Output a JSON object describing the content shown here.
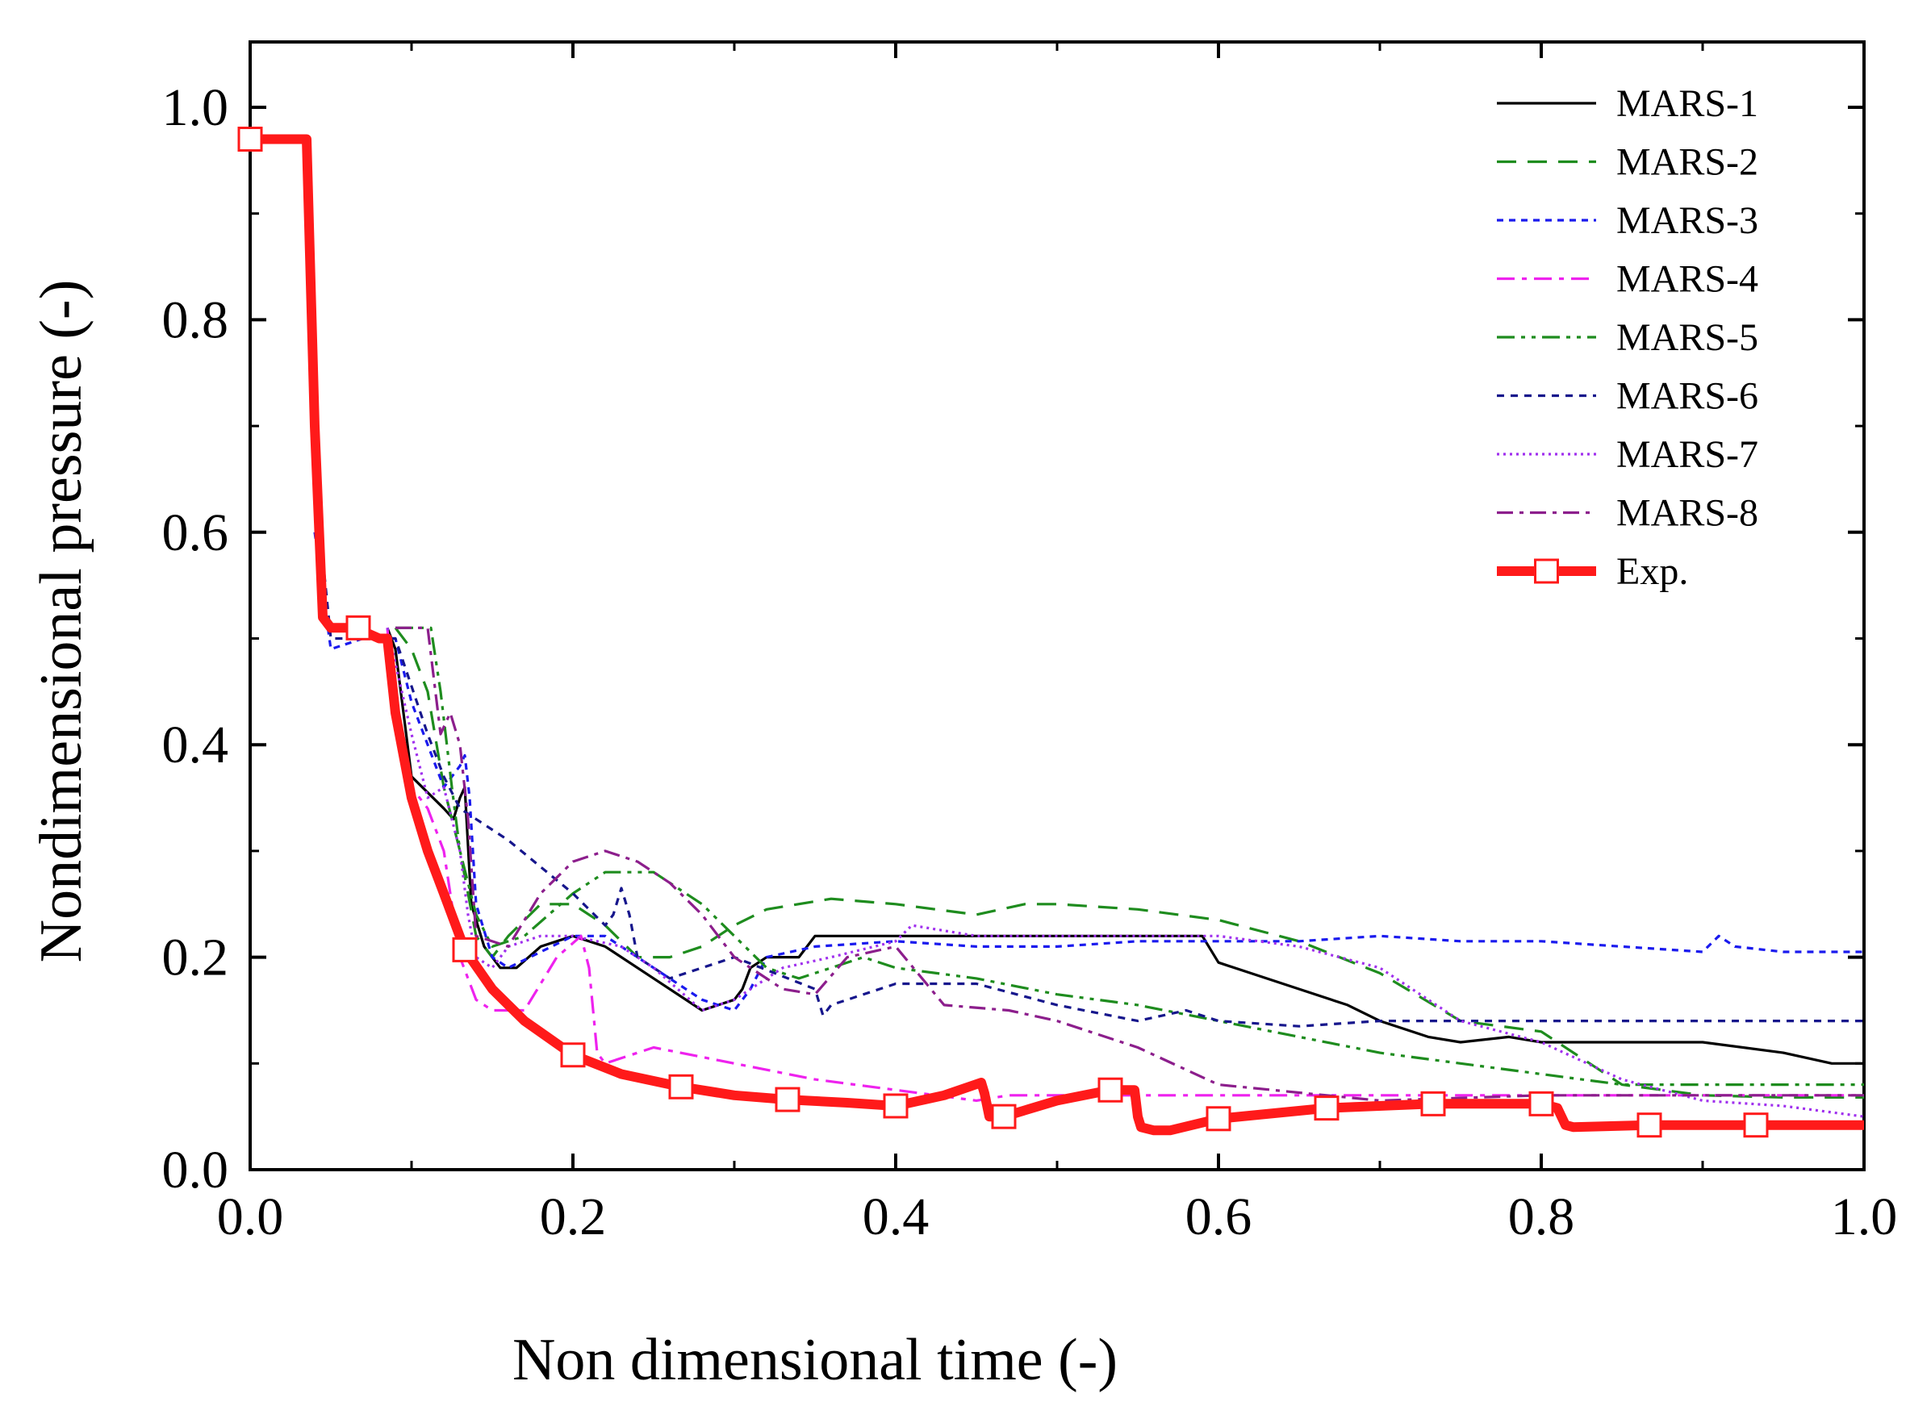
{
  "chart_data": {
    "type": "line",
    "title": "",
    "xlabel": "Non dimensional time (-)",
    "ylabel": "Nondimensional pressure (-)",
    "xlim": [
      0,
      1.0
    ],
    "ylim": [
      0,
      1.06
    ],
    "xticks": [
      "0.0",
      "0.2",
      "0.4",
      "0.6",
      "0.8",
      "1.0"
    ],
    "yticks": [
      "0.0",
      "0.2",
      "0.4",
      "0.6",
      "0.8",
      "1.0"
    ],
    "grid": false,
    "legend_position": "top-right",
    "series": [
      {
        "name": "MARS-1",
        "color": "#000000",
        "dash": "",
        "marker": "none",
        "x": [
          0.085,
          0.09,
          0.1,
          0.12,
          0.126,
          0.13,
          0.133,
          0.137,
          0.145,
          0.155,
          0.165,
          0.18,
          0.2,
          0.22,
          0.25,
          0.28,
          0.29,
          0.3,
          0.305,
          0.31,
          0.32,
          0.34,
          0.35,
          0.38,
          0.4,
          0.45,
          0.5,
          0.55,
          0.59,
          0.6,
          0.62,
          0.65,
          0.68,
          0.7,
          0.73,
          0.75,
          0.78,
          0.8,
          0.85,
          0.9,
          0.95,
          0.98,
          1.0
        ],
        "y": [
          0.51,
          0.49,
          0.37,
          0.34,
          0.33,
          0.35,
          0.36,
          0.25,
          0.21,
          0.19,
          0.19,
          0.21,
          0.22,
          0.21,
          0.18,
          0.15,
          0.155,
          0.16,
          0.17,
          0.19,
          0.2,
          0.2,
          0.22,
          0.22,
          0.22,
          0.22,
          0.22,
          0.22,
          0.22,
          0.195,
          0.185,
          0.17,
          0.155,
          0.14,
          0.125,
          0.12,
          0.125,
          0.12,
          0.12,
          0.12,
          0.11,
          0.1,
          0.1
        ]
      },
      {
        "name": "MARS-2",
        "color": "#1e8c1e",
        "dash": "24,14",
        "marker": "none",
        "x": [
          0.09,
          0.1,
          0.11,
          0.12,
          0.13,
          0.135,
          0.14,
          0.15,
          0.16,
          0.18,
          0.2,
          0.22,
          0.24,
          0.26,
          0.28,
          0.3,
          0.32,
          0.36,
          0.4,
          0.45,
          0.48,
          0.5,
          0.55,
          0.6,
          0.65,
          0.7,
          0.75,
          0.8,
          0.85,
          0.9,
          0.95,
          1.0
        ],
        "y": [
          0.51,
          0.49,
          0.45,
          0.36,
          0.3,
          0.26,
          0.22,
          0.2,
          0.22,
          0.25,
          0.25,
          0.23,
          0.2,
          0.2,
          0.21,
          0.23,
          0.245,
          0.255,
          0.25,
          0.24,
          0.25,
          0.25,
          0.245,
          0.235,
          0.215,
          0.185,
          0.14,
          0.13,
          0.08,
          0.07,
          0.068,
          0.068
        ]
      },
      {
        "name": "MARS-3",
        "color": "#1a1aee",
        "dash": "8,7",
        "marker": "none",
        "x": [
          0.04,
          0.05,
          0.07,
          0.09,
          0.1,
          0.12,
          0.13,
          0.133,
          0.136,
          0.14,
          0.15,
          0.16,
          0.2,
          0.22,
          0.25,
          0.28,
          0.3,
          0.31,
          0.32,
          0.35,
          0.4,
          0.45,
          0.5,
          0.55,
          0.6,
          0.65,
          0.7,
          0.75,
          0.8,
          0.85,
          0.9,
          0.91,
          0.92,
          0.95,
          1.0
        ],
        "y": [
          0.6,
          0.49,
          0.5,
          0.5,
          0.44,
          0.36,
          0.38,
          0.39,
          0.35,
          0.25,
          0.2,
          0.19,
          0.22,
          0.22,
          0.19,
          0.16,
          0.15,
          0.17,
          0.2,
          0.21,
          0.215,
          0.21,
          0.21,
          0.215,
          0.215,
          0.215,
          0.22,
          0.215,
          0.215,
          0.21,
          0.205,
          0.22,
          0.21,
          0.205,
          0.205
        ]
      },
      {
        "name": "MARS-4",
        "color": "#ee22ee",
        "dash": "22,9,6,9",
        "marker": "none",
        "x": [
          0.085,
          0.09,
          0.1,
          0.11,
          0.12,
          0.13,
          0.14,
          0.15,
          0.17,
          0.19,
          0.205,
          0.21,
          0.215,
          0.22,
          0.25,
          0.3,
          0.35,
          0.4,
          0.45,
          0.47,
          0.5,
          0.55,
          0.6,
          0.7,
          0.8,
          0.9,
          1.0
        ],
        "y": [
          0.51,
          0.42,
          0.36,
          0.34,
          0.3,
          0.2,
          0.16,
          0.15,
          0.15,
          0.2,
          0.22,
          0.19,
          0.11,
          0.1,
          0.115,
          0.1,
          0.085,
          0.075,
          0.065,
          0.07,
          0.07,
          0.07,
          0.07,
          0.07,
          0.07,
          0.07,
          0.07
        ]
      },
      {
        "name": "MARS-5",
        "color": "#1e8c1e",
        "dash": "22,8,5,8,5,8",
        "marker": "none",
        "x": [
          0.09,
          0.105,
          0.112,
          0.118,
          0.125,
          0.13,
          0.14,
          0.15,
          0.17,
          0.2,
          0.22,
          0.25,
          0.28,
          0.3,
          0.32,
          0.34,
          0.36,
          0.38,
          0.4,
          0.45,
          0.5,
          0.55,
          0.6,
          0.65,
          0.7,
          0.75,
          0.8,
          0.85,
          0.9,
          1.0
        ],
        "y": [
          0.51,
          0.51,
          0.51,
          0.45,
          0.36,
          0.3,
          0.24,
          0.21,
          0.22,
          0.26,
          0.28,
          0.28,
          0.25,
          0.22,
          0.19,
          0.18,
          0.19,
          0.2,
          0.19,
          0.18,
          0.165,
          0.155,
          0.14,
          0.125,
          0.11,
          0.1,
          0.09,
          0.08,
          0.08,
          0.08
        ]
      },
      {
        "name": "MARS-6",
        "color": "#16168c",
        "dash": "9,8",
        "marker": "none",
        "x": [
          0.04,
          0.05,
          0.07,
          0.09,
          0.11,
          0.12,
          0.13,
          0.14,
          0.16,
          0.2,
          0.22,
          0.225,
          0.23,
          0.235,
          0.24,
          0.26,
          0.3,
          0.35,
          0.355,
          0.36,
          0.4,
          0.45,
          0.5,
          0.55,
          0.58,
          0.6,
          0.65,
          0.7,
          0.8,
          0.9,
          1.0
        ],
        "y": [
          0.65,
          0.5,
          0.5,
          0.5,
          0.41,
          0.37,
          0.34,
          0.33,
          0.31,
          0.26,
          0.23,
          0.24,
          0.265,
          0.24,
          0.2,
          0.18,
          0.2,
          0.17,
          0.145,
          0.155,
          0.175,
          0.175,
          0.155,
          0.14,
          0.15,
          0.14,
          0.135,
          0.14,
          0.14,
          0.14,
          0.14
        ]
      },
      {
        "name": "MARS-7",
        "color": "#a030ee",
        "dash": "3,5",
        "marker": "none",
        "x": [
          0.085,
          0.1,
          0.11,
          0.12,
          0.13,
          0.135,
          0.14,
          0.15,
          0.16,
          0.18,
          0.2,
          0.23,
          0.25,
          0.28,
          0.3,
          0.33,
          0.36,
          0.4,
          0.41,
          0.45,
          0.5,
          0.55,
          0.6,
          0.65,
          0.7,
          0.75,
          0.8,
          0.85,
          0.9,
          0.95,
          1.0
        ],
        "y": [
          0.51,
          0.41,
          0.35,
          0.36,
          0.3,
          0.24,
          0.2,
          0.19,
          0.21,
          0.22,
          0.22,
          0.21,
          0.19,
          0.15,
          0.16,
          0.19,
          0.2,
          0.215,
          0.23,
          0.22,
          0.22,
          0.22,
          0.22,
          0.21,
          0.19,
          0.14,
          0.12,
          0.085,
          0.065,
          0.06,
          0.05
        ]
      },
      {
        "name": "MARS-8",
        "color": "#8c1e8c",
        "dash": "20,8,5,8",
        "marker": "none",
        "x": [
          0.09,
          0.11,
          0.118,
          0.124,
          0.13,
          0.135,
          0.14,
          0.16,
          0.18,
          0.2,
          0.22,
          0.24,
          0.26,
          0.28,
          0.3,
          0.33,
          0.35,
          0.37,
          0.4,
          0.43,
          0.47,
          0.5,
          0.55,
          0.6,
          0.7,
          0.8,
          0.9,
          1.0
        ],
        "y": [
          0.51,
          0.51,
          0.41,
          0.43,
          0.4,
          0.33,
          0.22,
          0.21,
          0.26,
          0.29,
          0.3,
          0.29,
          0.27,
          0.24,
          0.2,
          0.17,
          0.165,
          0.2,
          0.21,
          0.155,
          0.15,
          0.14,
          0.115,
          0.08,
          0.065,
          0.07,
          0.07,
          0.07
        ]
      },
      {
        "name": "Exp.",
        "color": "#ff1a1a",
        "dash": "",
        "marker": "square",
        "x": [
          0.0,
          0.03,
          0.035,
          0.04,
          0.045,
          0.05,
          0.065,
          0.08,
          0.085,
          0.09,
          0.1,
          0.11,
          0.12,
          0.133,
          0.15,
          0.17,
          0.2,
          0.23,
          0.267,
          0.3,
          0.333,
          0.37,
          0.4,
          0.43,
          0.453,
          0.455,
          0.458,
          0.467,
          0.5,
          0.533,
          0.548,
          0.55,
          0.552,
          0.56,
          0.57,
          0.6,
          0.667,
          0.733,
          0.8,
          0.81,
          0.815,
          0.82,
          0.867,
          0.933,
          1.0
        ],
        "y": [
          0.97,
          0.97,
          0.97,
          0.7,
          0.52,
          0.51,
          0.51,
          0.5,
          0.5,
          0.43,
          0.35,
          0.3,
          0.26,
          0.207,
          0.17,
          0.14,
          0.108,
          0.09,
          0.078,
          0.07,
          0.066,
          0.063,
          0.06,
          0.07,
          0.082,
          0.072,
          0.05,
          0.05,
          0.065,
          0.075,
          0.075,
          0.05,
          0.04,
          0.037,
          0.037,
          0.048,
          0.058,
          0.062,
          0.062,
          0.058,
          0.042,
          0.04,
          0.042,
          0.042,
          0.042
        ],
        "markers_x": [
          0.0,
          0.067,
          0.133,
          0.2,
          0.267,
          0.333,
          0.4,
          0.467,
          0.533,
          0.6,
          0.667,
          0.733,
          0.8,
          0.867,
          0.933
        ],
        "markers_y": [
          0.97,
          0.51,
          0.207,
          0.108,
          0.078,
          0.066,
          0.06,
          0.05,
          0.075,
          0.048,
          0.058,
          0.062,
          0.062,
          0.042,
          0.042
        ]
      }
    ]
  }
}
